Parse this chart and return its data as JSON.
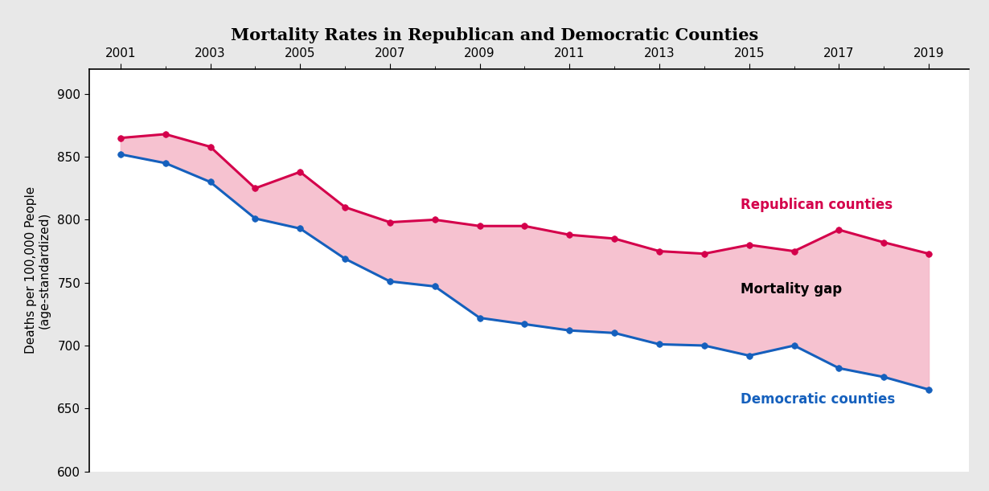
{
  "title": "Mortality Rates in Republican and Democratic Counties",
  "ylabel": "Deaths per 100,000 People\n(age-standardized)",
  "years": [
    2001,
    2002,
    2003,
    2004,
    2005,
    2006,
    2007,
    2008,
    2009,
    2010,
    2011,
    2012,
    2013,
    2014,
    2015,
    2016,
    2017,
    2018,
    2019
  ],
  "republican": [
    865,
    868,
    858,
    825,
    838,
    810,
    798,
    800,
    795,
    795,
    788,
    785,
    775,
    773,
    780,
    775,
    792,
    782,
    773
  ],
  "democratic": [
    852,
    845,
    830,
    801,
    793,
    769,
    751,
    747,
    722,
    717,
    712,
    710,
    701,
    700,
    692,
    700,
    682,
    675,
    665
  ],
  "republican_color": "#d4004b",
  "democratic_color": "#1560bd",
  "fill_color": "#f5b8c8",
  "fill_alpha": 0.85,
  "background_color": "#e8e8e8",
  "title_background": "#d4d4d4",
  "plot_background": "#ffffff",
  "ylim": [
    600,
    920
  ],
  "yticks": [
    600,
    650,
    700,
    750,
    800,
    850,
    900
  ],
  "xtick_major": [
    2001,
    2003,
    2005,
    2007,
    2009,
    2011,
    2013,
    2015,
    2017,
    2019
  ],
  "xtick_minor": [
    2002,
    2004,
    2006,
    2008,
    2010,
    2012,
    2014,
    2016,
    2018
  ],
  "label_republican": "Republican counties",
  "label_democratic": "Democratic counties",
  "label_gap": "Mortality gap",
  "title_fontsize": 15,
  "axis_fontsize": 11,
  "label_fontsize": 12,
  "line_width": 2.2,
  "marker_size": 5.5,
  "ann_rep_x": 2014.8,
  "ann_rep_y": 812,
  "ann_gap_x": 2014.8,
  "ann_gap_y": 745,
  "ann_dem_x": 2014.8,
  "ann_dem_y": 657
}
